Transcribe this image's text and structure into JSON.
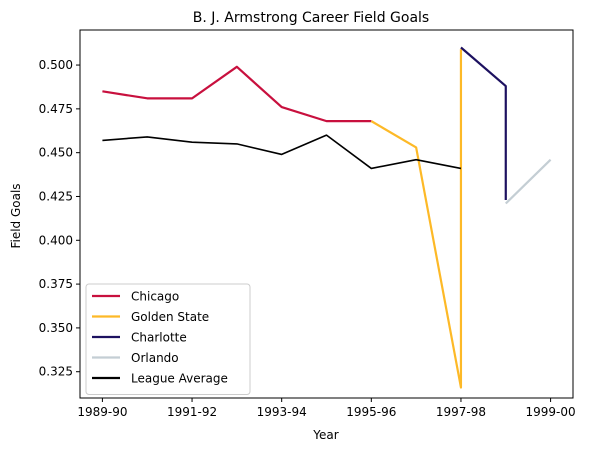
{
  "chart_data": {
    "type": "line",
    "title": "B. J. Armstrong Career Field Goals",
    "xlabel": "Year",
    "ylabel": "Field Goals",
    "x_ticks": [
      "1989-90",
      "1991-92",
      "1993-94",
      "1995-96",
      "1997-98",
      "1999-00"
    ],
    "y_ticks": [
      "0.325",
      "0.350",
      "0.375",
      "0.400",
      "0.425",
      "0.450",
      "0.475",
      "0.500"
    ],
    "xlim": [
      "1989-90",
      "1999-00"
    ],
    "ylim": [
      0.31,
      0.52
    ],
    "legend_position": "lower-left",
    "series": [
      {
        "name": "Chicago",
        "color": "#C8103E",
        "points": [
          {
            "x": "1989-90",
            "y": 0.485
          },
          {
            "x": "1990-91",
            "y": 0.481
          },
          {
            "x": "1991-92",
            "y": 0.481
          },
          {
            "x": "1992-93",
            "y": 0.499
          },
          {
            "x": "1993-94",
            "y": 0.476
          },
          {
            "x": "1994-95",
            "y": 0.468
          },
          {
            "x": "1995-96",
            "y": 0.468
          }
        ]
      },
      {
        "name": "Golden State",
        "color": "#FDB927",
        "points": [
          {
            "x": "1995-96",
            "y": 0.468
          },
          {
            "x": "1996-97",
            "y": 0.453
          },
          {
            "x": "1997-98",
            "y": 0.316
          },
          {
            "x": "1997-98",
            "y": 0.509
          }
        ]
      },
      {
        "name": "Charlotte",
        "color": "#1D1160",
        "points": [
          {
            "x": "1997-98",
            "y": 0.51
          },
          {
            "x": "1998-99",
            "y": 0.488
          },
          {
            "x": "1998-99",
            "y": 0.423
          }
        ]
      },
      {
        "name": "Orlando",
        "color": "#C4CED4",
        "points": [
          {
            "x": "1998-99",
            "y": 0.421
          },
          {
            "x": "1999-00",
            "y": 0.446
          }
        ]
      },
      {
        "name": "League Average",
        "color": "#000000",
        "points": [
          {
            "x": "1989-90",
            "y": 0.457
          },
          {
            "x": "1990-91",
            "y": 0.459
          },
          {
            "x": "1991-92",
            "y": 0.456
          },
          {
            "x": "1992-93",
            "y": 0.455
          },
          {
            "x": "1993-94",
            "y": 0.449
          },
          {
            "x": "1994-95",
            "y": 0.46
          },
          {
            "x": "1995-96",
            "y": 0.441
          },
          {
            "x": "1996-97",
            "y": 0.446
          },
          {
            "x": "1997-98",
            "y": 0.441
          }
        ]
      }
    ]
  }
}
